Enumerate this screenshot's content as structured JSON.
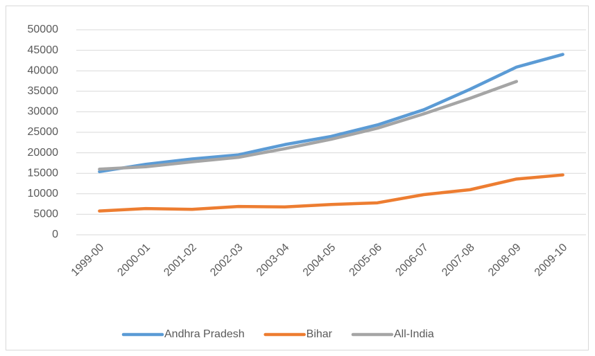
{
  "chart_data": {
    "type": "line",
    "categories": [
      "1999-00",
      "2000-01",
      "2001-02",
      "2002-03",
      "2003-04",
      "2004-05",
      "2005-06",
      "2006-07",
      "2007-08",
      "2008-09",
      "2009-10"
    ],
    "series": [
      {
        "name": "Andhra Pradesh",
        "color": "#5b9bd5",
        "values": [
          15400,
          17200,
          18500,
          19500,
          22000,
          24000,
          26800,
          30500,
          35500,
          40900,
          44000
        ]
      },
      {
        "name": "Bihar",
        "color": "#ed7d31",
        "values": [
          5800,
          6400,
          6200,
          6900,
          6800,
          7400,
          7800,
          9800,
          11000,
          13600,
          14600
        ]
      },
      {
        "name": "All-India",
        "color": "#a5a5a5",
        "values": [
          16000,
          16600,
          17800,
          18900,
          21000,
          23300,
          26000,
          29500,
          33300,
          37400,
          null
        ]
      }
    ],
    "ylim": [
      0,
      50000
    ],
    "yticks": [
      0,
      5000,
      10000,
      15000,
      20000,
      25000,
      30000,
      35000,
      40000,
      45000,
      50000
    ],
    "grid": true,
    "legend": "bottom"
  }
}
